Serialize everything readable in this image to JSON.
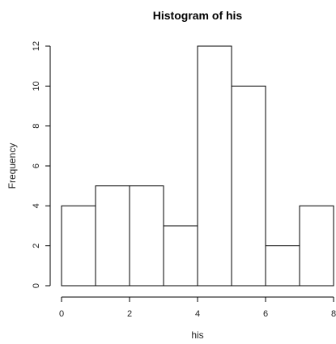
{
  "chart_data": {
    "type": "bar",
    "title": "Histogram of his",
    "xlabel": "his",
    "ylabel": "Frequency",
    "bin_edges": [
      0,
      1,
      2,
      3,
      4,
      5,
      6,
      7,
      8
    ],
    "values": [
      4,
      5,
      5,
      3,
      12,
      10,
      2,
      4
    ],
    "xlim": [
      0,
      8
    ],
    "ylim": [
      0,
      12
    ],
    "x_ticks": [
      0,
      2,
      4,
      6,
      8
    ],
    "y_ticks": [
      0,
      2,
      4,
      6,
      8,
      10,
      12
    ],
    "grid": false,
    "legend": "none",
    "bar_fill": "#ffffff",
    "bar_stroke": "#000000"
  }
}
